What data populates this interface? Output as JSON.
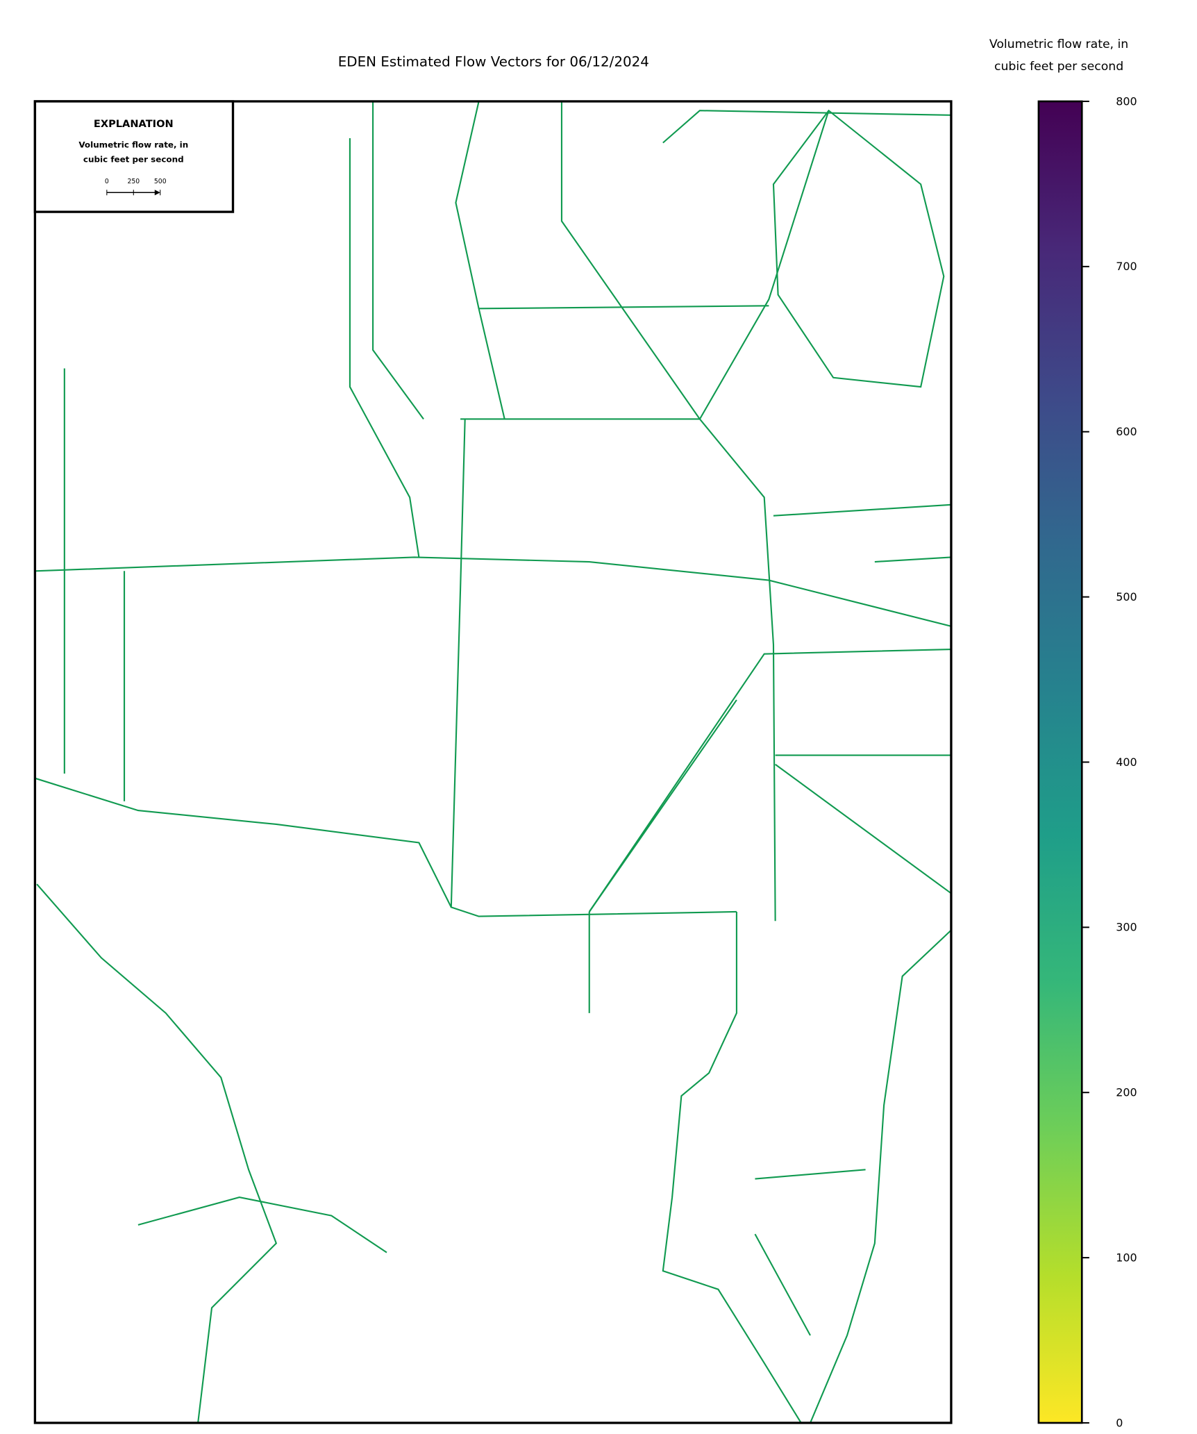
{
  "chart_data": {
    "type": "vector-map",
    "title": "EDEN Estimated Flow Vectors for 06/12/2024",
    "explanation": {
      "title": "EXPLANATION",
      "label": [
        "Volumetric flow rate, in",
        "cubic feet per second"
      ],
      "scale_ticks": [
        0,
        250,
        500
      ]
    },
    "colorbar": {
      "label": [
        "Volumetric flow rate, in",
        "cubic feet per second"
      ],
      "colormap": "viridis_r",
      "ylim": [
        0,
        800
      ],
      "yticks": [
        0,
        100,
        200,
        300,
        400,
        500,
        600,
        700,
        800
      ]
    }
  }
}
